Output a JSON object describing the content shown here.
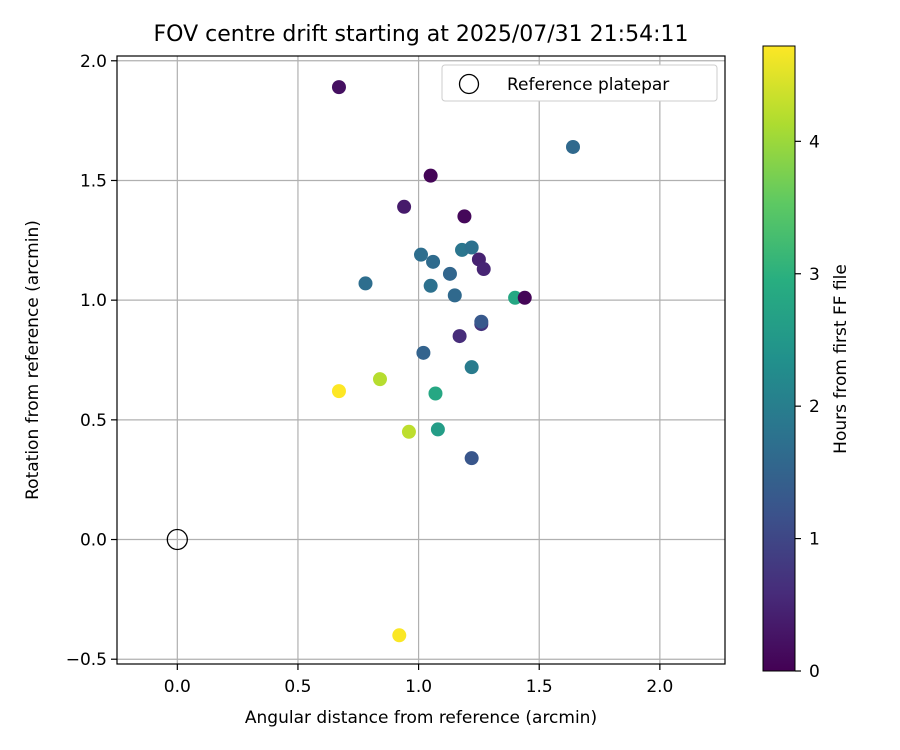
{
  "chart_data": {
    "type": "scatter",
    "title": "FOV centre drift starting at 2025/07/31 21:54:11",
    "xlabel": "Angular distance from reference (arcmin)",
    "ylabel": "Rotation from reference (arcmin)",
    "xlim": [
      -0.25,
      2.27
    ],
    "ylim": [
      -0.52,
      2.02
    ],
    "xticks": [
      0.0,
      0.5,
      1.0,
      1.5,
      2.0
    ],
    "xtick_labels": [
      "0.0",
      "0.5",
      "1.0",
      "1.5",
      "2.0"
    ],
    "yticks": [
      -0.5,
      0.0,
      0.5,
      1.0,
      1.5,
      2.0
    ],
    "ytick_labels": [
      "−0.5",
      "0.0",
      "0.5",
      "1.0",
      "1.5",
      "2.0"
    ],
    "grid": true,
    "legend_position": "top-right",
    "legend": [
      {
        "label": "Reference platepar",
        "marker": "open-circle"
      }
    ],
    "reference_point": {
      "x": 0.0,
      "y": 0.0
    },
    "colorbar": {
      "label": "Hours from first FF file",
      "colormap": "viridis",
      "range": [
        0,
        4.72
      ],
      "ticks": [
        0,
        1,
        2,
        3,
        4
      ],
      "tick_labels": [
        "0",
        "1",
        "2",
        "3",
        "4"
      ]
    },
    "points": [
      {
        "x": 0.67,
        "y": 1.89,
        "hours": 0.2
      },
      {
        "x": 1.64,
        "y": 1.64,
        "hours": 1.6
      },
      {
        "x": 1.05,
        "y": 1.52,
        "hours": 0.05
      },
      {
        "x": 0.94,
        "y": 1.39,
        "hours": 0.35
      },
      {
        "x": 1.19,
        "y": 1.35,
        "hours": 0.1
      },
      {
        "x": 1.01,
        "y": 1.19,
        "hours": 1.7
      },
      {
        "x": 1.18,
        "y": 1.21,
        "hours": 1.85
      },
      {
        "x": 1.22,
        "y": 1.22,
        "hours": 1.75
      },
      {
        "x": 1.06,
        "y": 1.16,
        "hours": 1.65
      },
      {
        "x": 1.25,
        "y": 1.17,
        "hours": 0.45
      },
      {
        "x": 1.13,
        "y": 1.11,
        "hours": 1.55
      },
      {
        "x": 1.27,
        "y": 1.13,
        "hours": 0.5
      },
      {
        "x": 0.78,
        "y": 1.07,
        "hours": 1.7
      },
      {
        "x": 1.05,
        "y": 1.06,
        "hours": 1.75
      },
      {
        "x": 1.15,
        "y": 1.02,
        "hours": 1.6
      },
      {
        "x": 1.4,
        "y": 1.01,
        "hours": 2.8
      },
      {
        "x": 1.44,
        "y": 1.01,
        "hours": 0.05
      },
      {
        "x": 1.26,
        "y": 0.9,
        "hours": 0.7
      },
      {
        "x": 1.26,
        "y": 0.91,
        "hours": 1.3
      },
      {
        "x": 1.17,
        "y": 0.85,
        "hours": 0.6
      },
      {
        "x": 1.02,
        "y": 0.78,
        "hours": 1.5
      },
      {
        "x": 1.22,
        "y": 0.72,
        "hours": 1.95
      },
      {
        "x": 0.67,
        "y": 0.62,
        "hours": 4.72
      },
      {
        "x": 0.84,
        "y": 0.67,
        "hours": 4.2
      },
      {
        "x": 1.07,
        "y": 0.61,
        "hours": 2.8
      },
      {
        "x": 0.96,
        "y": 0.45,
        "hours": 4.25
      },
      {
        "x": 1.08,
        "y": 0.46,
        "hours": 2.6
      },
      {
        "x": 1.22,
        "y": 0.34,
        "hours": 1.25
      },
      {
        "x": 0.92,
        "y": -0.4,
        "hours": 4.7
      }
    ]
  }
}
